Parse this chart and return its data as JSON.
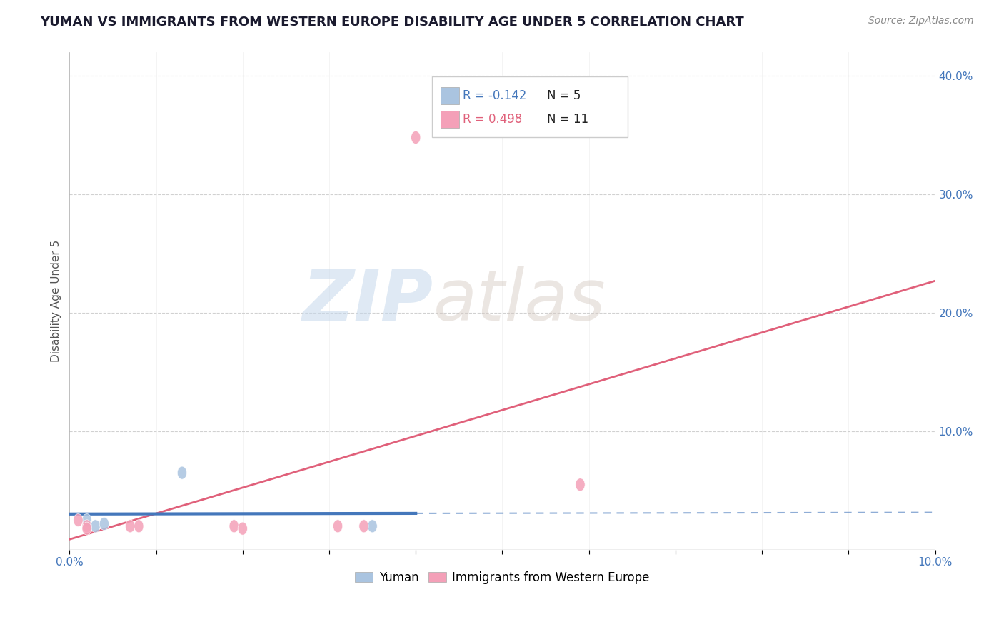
{
  "title": "YUMAN VS IMMIGRANTS FROM WESTERN EUROPE DISABILITY AGE UNDER 5 CORRELATION CHART",
  "source": "Source: ZipAtlas.com",
  "ylabel": "Disability Age Under 5",
  "xlim": [
    0.0,
    0.1
  ],
  "ylim": [
    0.0,
    0.42
  ],
  "xticks": [
    0.0,
    0.01,
    0.02,
    0.03,
    0.04,
    0.05,
    0.06,
    0.07,
    0.08,
    0.09,
    0.1
  ],
  "yticks": [
    0.1,
    0.2,
    0.3,
    0.4
  ],
  "yuman_points": [
    [
      0.002,
      0.025
    ],
    [
      0.003,
      0.02
    ],
    [
      0.004,
      0.022
    ],
    [
      0.013,
      0.065
    ],
    [
      0.035,
      0.02
    ]
  ],
  "immigrants_points": [
    [
      0.001,
      0.025
    ],
    [
      0.002,
      0.02
    ],
    [
      0.002,
      0.018
    ],
    [
      0.007,
      0.02
    ],
    [
      0.008,
      0.02
    ],
    [
      0.019,
      0.02
    ],
    [
      0.02,
      0.018
    ],
    [
      0.031,
      0.02
    ],
    [
      0.034,
      0.02
    ],
    [
      0.04,
      0.348
    ],
    [
      0.059,
      0.055
    ]
  ],
  "yuman_R": -0.142,
  "yuman_N": 5,
  "immigrants_R": 0.498,
  "immigrants_N": 11,
  "yuman_color": "#aac4e0",
  "yuman_line_color": "#4477bb",
  "immigrants_color": "#f4a0b8",
  "immigrants_line_color": "#e0607a",
  "watermark_zip": "ZIP",
  "watermark_atlas": "atlas",
  "legend_R_yuman_color": "#4477bb",
  "legend_R_imm_color": "#e0607a",
  "legend_N_color": "#222222"
}
